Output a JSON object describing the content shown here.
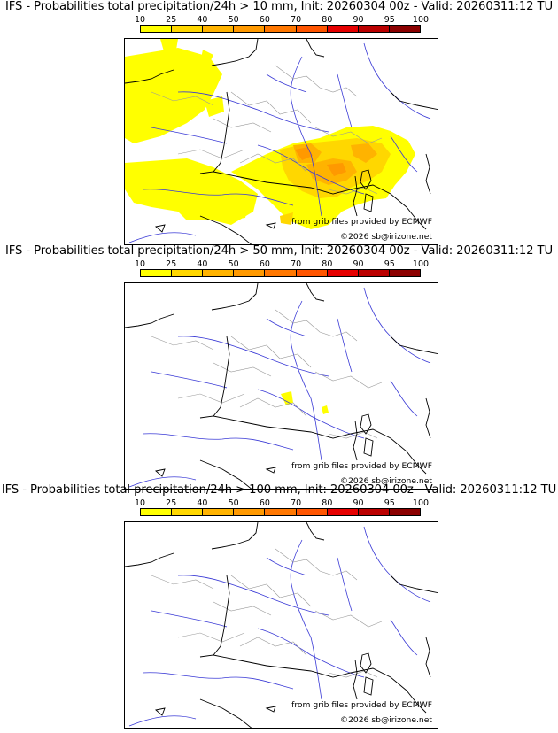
{
  "maps": [
    {
      "title": "IFS - Probabilities total precipitation/24h > 10 mm, Init: 20260304 00z - Valid: 20260311:12 TU",
      "source_credit": "from grib files provided by ECMWF",
      "copyright": "©2026 sb@irizone.net"
    },
    {
      "title": "IFS - Probabilities total precipitation/24h > 50 mm, Init: 20260304 00z - Valid: 20260311:12 TU",
      "source_credit": "from grib files provided by ECMWF",
      "copyright": "©2026 sb@irizone.net"
    },
    {
      "title": "IFS - Probabilities total precipitation/24h > 100 mm, Init: 20260304 00z - Valid: 20260311:12 TU",
      "source_credit": "from grib files provided by ECMWF",
      "copyright": "©2026 sb@irizone.net"
    }
  ],
  "colorbar": {
    "ticks": [
      "10",
      "25",
      "40",
      "50",
      "60",
      "70",
      "80",
      "90",
      "95",
      "100"
    ],
    "colors": [
      "#ffff00",
      "#ffd700",
      "#ffb300",
      "#ff9900",
      "#ff7700",
      "#ff5500",
      "#e60000",
      "#bb0000",
      "#8b0000"
    ]
  }
}
